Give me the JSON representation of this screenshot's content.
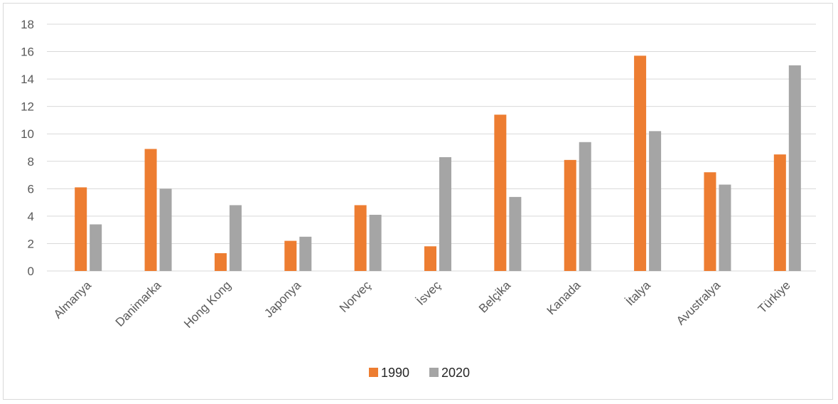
{
  "chart_data": {
    "type": "bar",
    "title": "",
    "xlabel": "",
    "ylabel": "",
    "ylim": [
      0,
      18
    ],
    "yticks": [
      0,
      2,
      4,
      6,
      8,
      10,
      12,
      14,
      16,
      18
    ],
    "grid": true,
    "legend_position": "bottom",
    "categories": [
      "Almanya",
      "Danimarka",
      "Hong Kong",
      "Japonya",
      "Norveç",
      "İsveç",
      "Belçika",
      "Kanada",
      "İtalya",
      "Avustralya",
      "Türkiye"
    ],
    "series": [
      {
        "name": "1990",
        "color": "#ed7d31",
        "values": [
          6.1,
          8.9,
          1.3,
          2.2,
          4.8,
          1.8,
          11.4,
          8.1,
          15.7,
          7.2,
          8.5
        ]
      },
      {
        "name": "2020",
        "color": "#a5a5a5",
        "values": [
          3.4,
          6.0,
          4.8,
          2.5,
          4.1,
          8.3,
          5.4,
          9.4,
          10.2,
          6.3,
          15.0
        ]
      }
    ]
  }
}
